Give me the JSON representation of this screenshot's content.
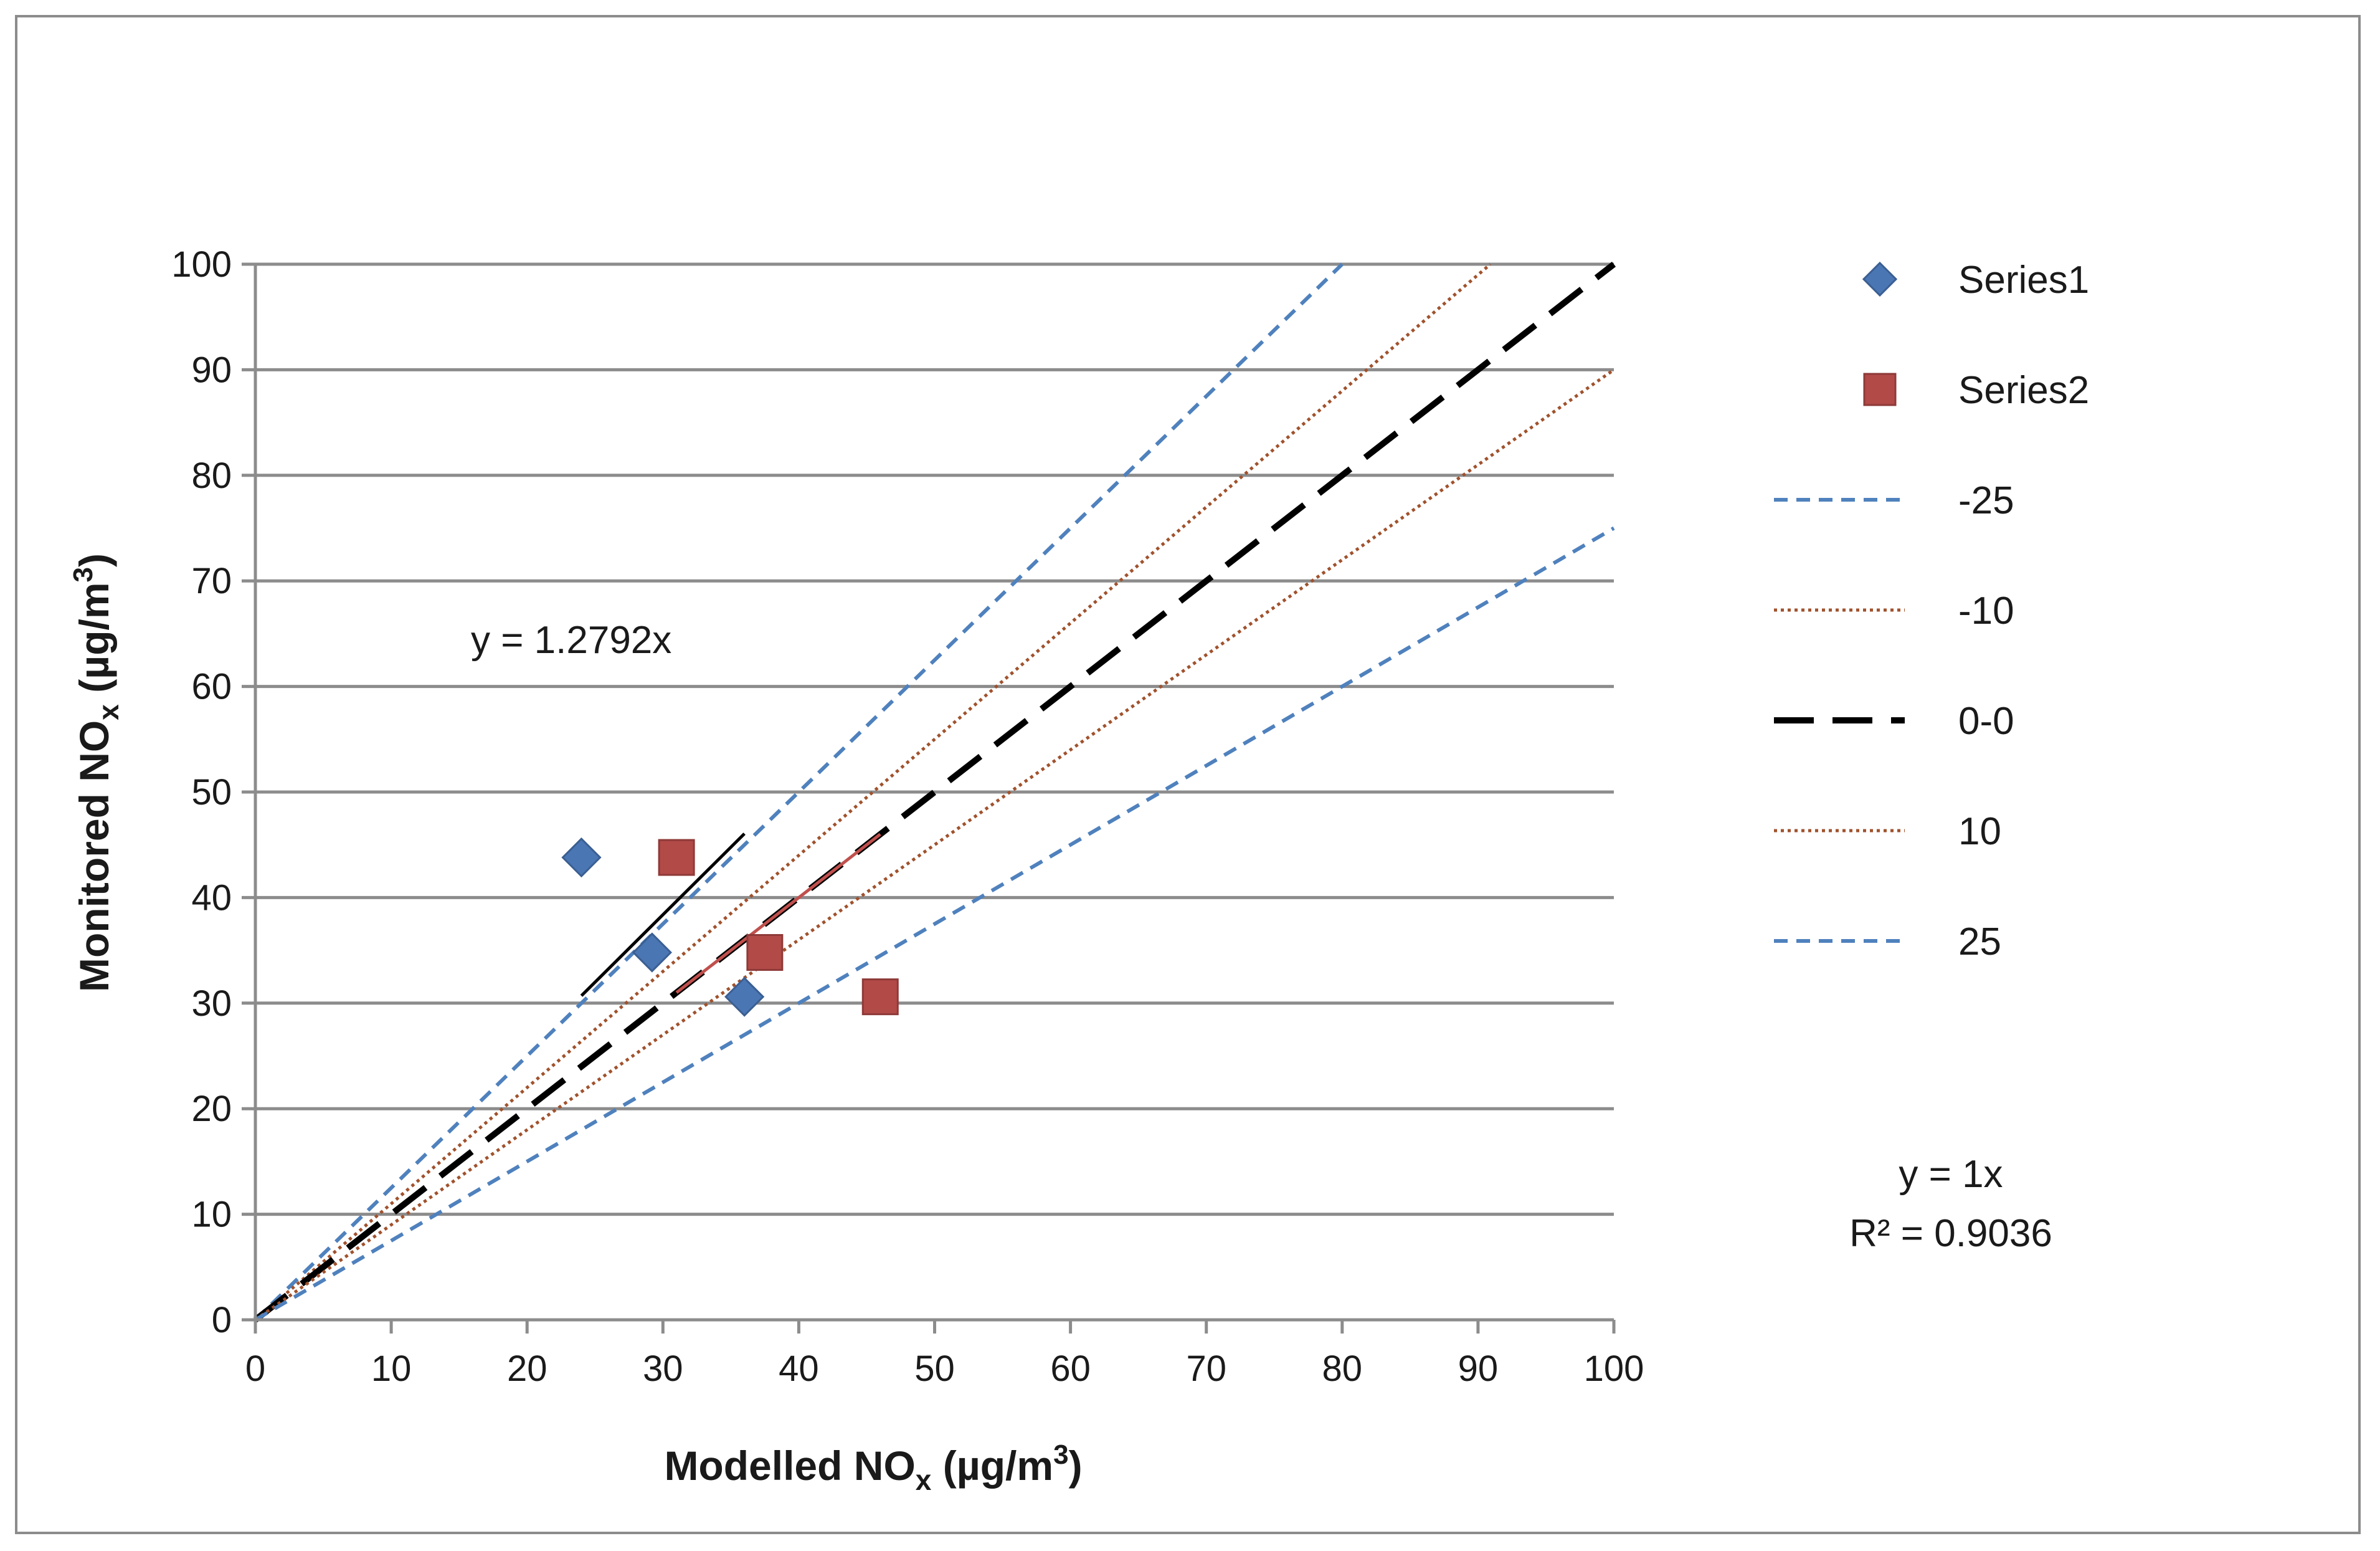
{
  "chart_data": {
    "type": "scatter",
    "xlabel": "Modelled NOx (µg/m³)",
    "ylabel": "Monitored NOx (µg/m³)",
    "xlabel_parts": {
      "pre": "Modelled NO",
      "sub": "x",
      "post": " (µg/m",
      "sup": "3",
      "end": ")"
    },
    "ylabel_parts": {
      "pre": "Monitored NO",
      "sub": "x",
      "post": " (µg/m",
      "sup": "3",
      "end": ")"
    },
    "xlim": [
      0,
      100
    ],
    "ylim": [
      0,
      100
    ],
    "x_ticks": [
      0,
      10,
      20,
      30,
      40,
      50,
      60,
      70,
      80,
      90,
      100
    ],
    "y_ticks": [
      0,
      10,
      20,
      30,
      40,
      50,
      60,
      70,
      80,
      90,
      100
    ],
    "grid": "horizontal",
    "series": [
      {
        "name": "Series1",
        "marker": "diamond",
        "color": "#4a76b4",
        "points": [
          [
            24,
            43.8
          ],
          [
            29.2,
            34.8
          ],
          [
            36,
            30.6
          ]
        ]
      },
      {
        "name": "Series2",
        "marker": "square",
        "color": "#b24a48",
        "points": [
          [
            31,
            43.8
          ],
          [
            37.5,
            34.8
          ],
          [
            46,
            30.6
          ]
        ]
      }
    ],
    "reference_lines": [
      {
        "name": "-25",
        "slope": 1.25,
        "style": "dash",
        "color": "#4f81bd"
      },
      {
        "name": "-10",
        "slope": 1.1,
        "style": "dot",
        "color": "#a0522d"
      },
      {
        "name": "0-0",
        "slope": 1.0,
        "style": "longdash",
        "color": "#000000"
      },
      {
        "name": "10",
        "slope": 0.9,
        "style": "dot",
        "color": "#a0522d"
      },
      {
        "name": "25",
        "slope": 0.75,
        "style": "dash",
        "color": "#4f81bd"
      }
    ],
    "trendlines": [
      {
        "series": "Series1",
        "slope": 1.2792,
        "x_range": [
          24,
          36
        ],
        "color": "#000000"
      },
      {
        "series": "Series2",
        "slope": 1.0,
        "x_range": [
          31,
          46
        ],
        "color": "#c0504d"
      }
    ],
    "legend": [
      "Series1",
      "Series2",
      "-25",
      "-10",
      "0-0",
      "10",
      "25"
    ],
    "legend_position": "right",
    "annotations": {
      "series1_equation": "y = 1.2792x",
      "series2_equation": "y = 1x",
      "series2_r2": "R² = 0.9036"
    }
  }
}
